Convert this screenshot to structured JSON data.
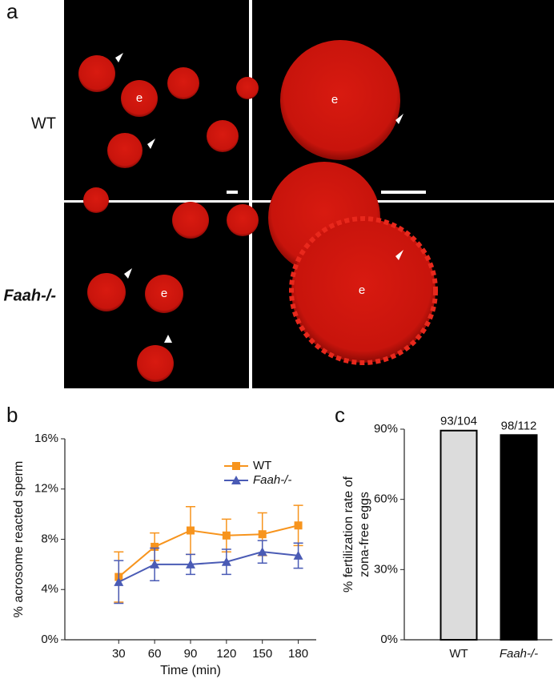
{
  "panel_a": {
    "panel_label": "a",
    "rows": [
      "WT",
      "Faah-/-"
    ],
    "egg_label": "e"
  },
  "chart_data": [
    {
      "type": "line",
      "panel_label": "b",
      "xlabel": "Time (min)",
      "ylabel": "% acrosome reacted sperm",
      "x": [
        30,
        60,
        90,
        120,
        150,
        180
      ],
      "xlim": [
        -15,
        195
      ],
      "xticks": [
        30,
        60,
        90,
        120,
        150,
        180
      ],
      "ylim": [
        0,
        16
      ],
      "yticks": [
        {
          "value": 0,
          "label": "0%"
        },
        {
          "value": 4,
          "label": "4%"
        },
        {
          "value": 8,
          "label": "8%"
        },
        {
          "value": 12,
          "label": "12%"
        },
        {
          "value": 16,
          "label": "16%"
        }
      ],
      "legend": "upper right",
      "series": [
        {
          "name": "WT",
          "color": "#f7941d",
          "marker": "square",
          "values": [
            5.0,
            7.4,
            8.7,
            8.3,
            8.4,
            9.1
          ],
          "errors": [
            2.0,
            1.1,
            1.9,
            1.3,
            1.7,
            1.6
          ]
        },
        {
          "name": "Faah-/-",
          "color": "#4a5bb5",
          "marker": "triangle",
          "values": [
            4.6,
            6.0,
            6.0,
            6.2,
            7.0,
            6.7
          ],
          "errors": [
            1.7,
            1.3,
            0.8,
            1.0,
            0.9,
            1.0
          ]
        }
      ]
    },
    {
      "type": "bar",
      "panel_label": "c",
      "ylabel": [
        "% fertilization rate of",
        "zona-free eggs"
      ],
      "categories": [
        "WT",
        "Faah-/-"
      ],
      "values": [
        89.4,
        87.5
      ],
      "value_labels": [
        "93/104",
        "98/112"
      ],
      "colors": [
        "#dcdcdc",
        "#000000"
      ],
      "ylim": [
        0,
        90
      ],
      "yticks": [
        {
          "value": 0,
          "label": "0%"
        },
        {
          "value": 30,
          "label": "30%"
        },
        {
          "value": 60,
          "label": "60%"
        },
        {
          "value": 90,
          "label": "90%"
        }
      ]
    }
  ]
}
